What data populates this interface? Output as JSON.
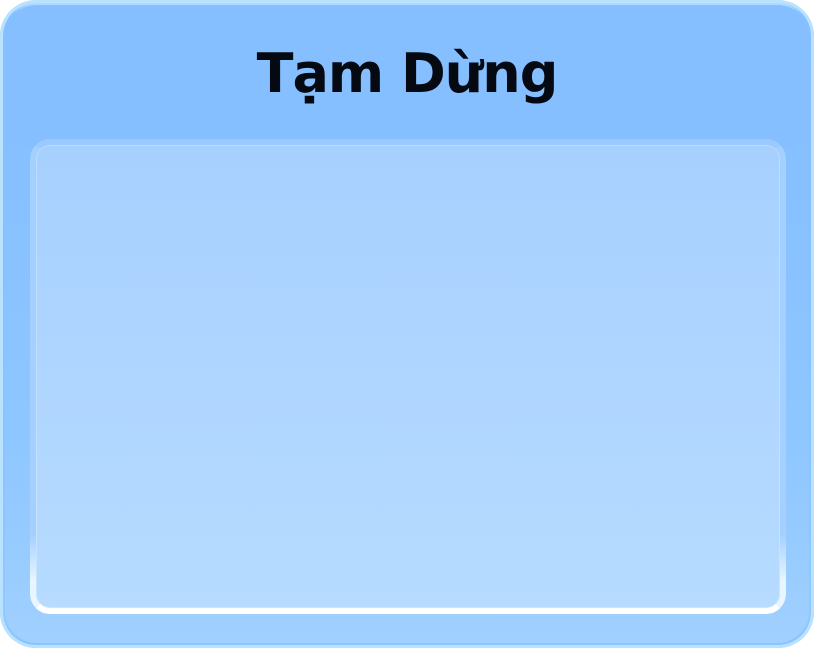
{
  "dialog": {
    "title": "Tạm Dừng",
    "colors": {
      "frame": "#86C0FF",
      "panel": "#AED4FF",
      "title_text": "#050A12",
      "panel_highlight": "#FFFFFF"
    }
  }
}
